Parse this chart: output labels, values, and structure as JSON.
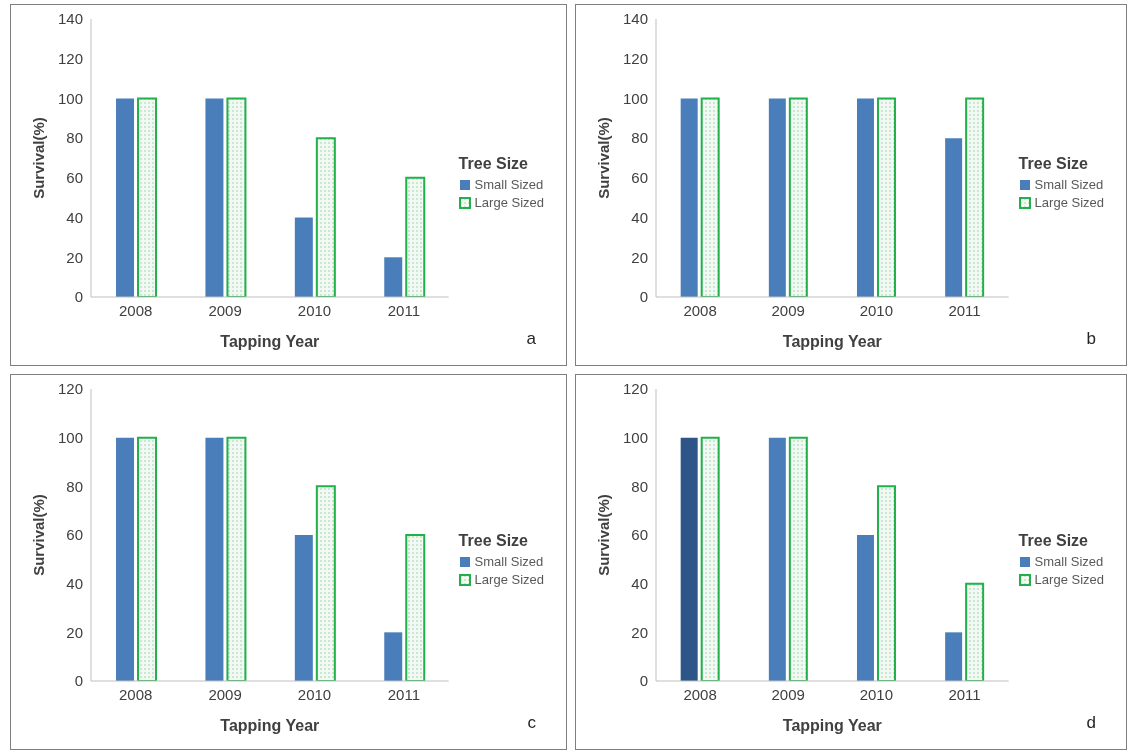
{
  "chart_data": [
    {
      "type": "bar",
      "categories": [
        "2008",
        "2009",
        "2010",
        "2011"
      ],
      "xlabel": "Tapping Year",
      "ylabel": "Survival(%)",
      "legend_title": "Tree Size",
      "legend": "right",
      "ylim": [
        0,
        140
      ],
      "yticks": [
        0,
        20,
        40,
        60,
        80,
        100,
        120,
        140
      ],
      "annotations": [
        "a"
      ],
      "series": [
        {
          "name": "Small Sized",
          "color": "#4a7ebb",
          "values": [
            100,
            100,
            40,
            20
          ]
        },
        {
          "name": "Large Sized",
          "color": "#22b04b",
          "values": [
            100,
            100,
            80,
            60
          ]
        }
      ]
    },
    {
      "type": "bar",
      "categories": [
        "2008",
        "2009",
        "2010",
        "2011"
      ],
      "xlabel": "Tapping Year",
      "ylabel": "Survival(%)",
      "legend_title": "Tree Size",
      "legend": "right",
      "ylim": [
        0,
        140
      ],
      "yticks": [
        0,
        20,
        40,
        60,
        80,
        100,
        120,
        140
      ],
      "annotations": [
        "b"
      ],
      "series": [
        {
          "name": "Small Sized",
          "color": "#4a7ebb",
          "values": [
            100,
            100,
            100,
            80
          ]
        },
        {
          "name": "Large Sized",
          "color": "#22b04b",
          "values": [
            100,
            100,
            100,
            100
          ]
        }
      ]
    },
    {
      "type": "bar",
      "categories": [
        "2008",
        "2009",
        "2010",
        "2011"
      ],
      "xlabel": "Tapping Year",
      "ylabel": "Survival(%)",
      "legend_title": "Tree Size",
      "legend": "right",
      "ylim": [
        0,
        120
      ],
      "yticks": [
        0,
        20,
        40,
        60,
        80,
        100,
        120
      ],
      "annotations": [
        "c"
      ],
      "series": [
        {
          "name": "Small Sized",
          "color": "#4a7ebb",
          "values": [
            100,
            100,
            60,
            20
          ]
        },
        {
          "name": "Large Sized",
          "color": "#22b04b",
          "values": [
            100,
            100,
            80,
            60
          ]
        }
      ]
    },
    {
      "type": "bar",
      "categories": [
        "2008",
        "2009",
        "2010",
        "2011"
      ],
      "xlabel": "Tapping Year",
      "ylabel": "Survival(%)",
      "legend_title": "Tree Size",
      "legend": "right",
      "ylim": [
        0,
        120
      ],
      "yticks": [
        0,
        20,
        40,
        60,
        80,
        100,
        120
      ],
      "annotations": [
        "d"
      ],
      "series": [
        {
          "name": "Small Sized",
          "color": "#4a7ebb",
          "colors": [
            "#2e5587",
            "#4a7ebb",
            "#4a7ebb",
            "#4a7ebb"
          ],
          "values": [
            100,
            100,
            60,
            20
          ]
        },
        {
          "name": "Large Sized",
          "color": "#22b04b",
          "values": [
            100,
            100,
            80,
            40
          ]
        }
      ]
    }
  ]
}
